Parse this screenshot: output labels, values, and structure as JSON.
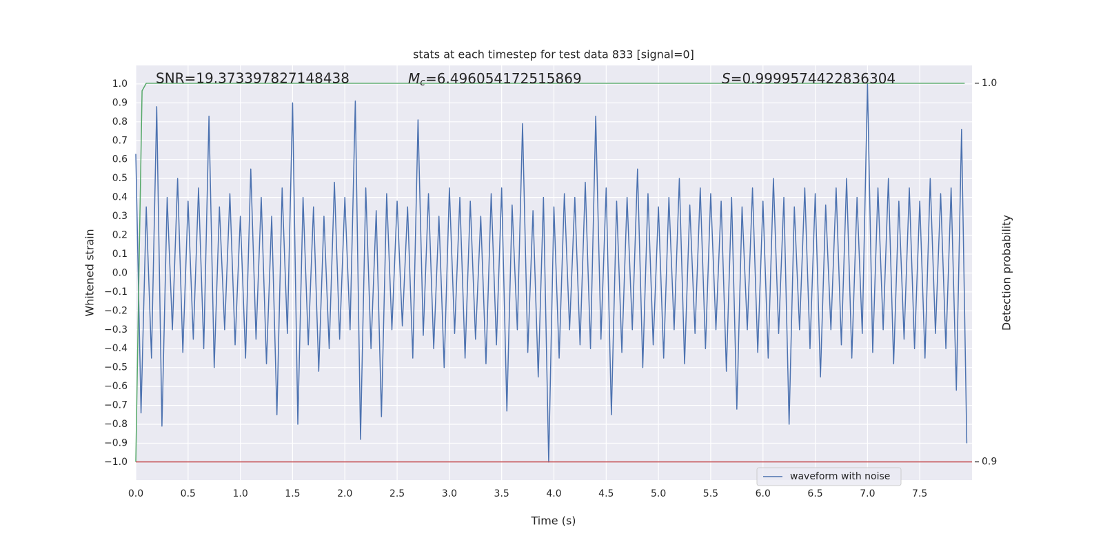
{
  "chart_data": {
    "type": "line",
    "title": "stats at each timestep for test data 833 [signal=0]",
    "xlabel": "Time (s)",
    "ylabel": "Whitened strain",
    "y2label": "Detection probability",
    "annotations": [
      {
        "text": "SNR=19.373397827148438"
      },
      {
        "symbol": "M",
        "subscript": "c",
        "text": "=6.496054172515869"
      },
      {
        "symbol": "S",
        "text": "=0.9999574422836304"
      }
    ],
    "xlim": [
      0,
      8
    ],
    "ylim": [
      -1.095,
      1.098
    ],
    "y2lim": [
      0.8952,
      1.0047
    ],
    "xticks": [
      {
        "value": 0,
        "label": "0.0"
      },
      {
        "value": 0.5,
        "label": "0.5"
      },
      {
        "value": 1,
        "label": "1.0"
      },
      {
        "value": 1.5,
        "label": "1.5"
      },
      {
        "value": 2,
        "label": "2.0"
      },
      {
        "value": 2.5,
        "label": "2.5"
      },
      {
        "value": 3,
        "label": "3.0"
      },
      {
        "value": 3.5,
        "label": "3.5"
      },
      {
        "value": 4,
        "label": "4.0"
      },
      {
        "value": 4.5,
        "label": "4.5"
      },
      {
        "value": 5,
        "label": "5.0"
      },
      {
        "value": 5.5,
        "label": "5.5"
      },
      {
        "value": 6,
        "label": "6.0"
      },
      {
        "value": 6.5,
        "label": "6.5"
      },
      {
        "value": 7,
        "label": "7.0"
      },
      {
        "value": 7.5,
        "label": "7.5"
      }
    ],
    "yticks": [
      {
        "value": -1,
        "label": "−1.0"
      },
      {
        "value": -0.9,
        "label": "−0.9"
      },
      {
        "value": -0.8,
        "label": "−0.8"
      },
      {
        "value": -0.7,
        "label": "−0.7"
      },
      {
        "value": -0.6,
        "label": "−0.6"
      },
      {
        "value": -0.5,
        "label": "−0.5"
      },
      {
        "value": -0.4,
        "label": "−0.4"
      },
      {
        "value": -0.3,
        "label": "−0.3"
      },
      {
        "value": -0.2,
        "label": "−0.2"
      },
      {
        "value": -0.1,
        "label": "−0.1"
      },
      {
        "value": 0,
        "label": "0.0"
      },
      {
        "value": 0.1,
        "label": "0.1"
      },
      {
        "value": 0.2,
        "label": "0.2"
      },
      {
        "value": 0.3,
        "label": "0.3"
      },
      {
        "value": 0.4,
        "label": "0.4"
      },
      {
        "value": 0.5,
        "label": "0.5"
      },
      {
        "value": 0.6,
        "label": "0.6"
      },
      {
        "value": 0.7,
        "label": "0.7"
      },
      {
        "value": 0.8,
        "label": "0.8"
      },
      {
        "value": 0.9,
        "label": "0.9"
      },
      {
        "value": 1,
        "label": "1.0"
      }
    ],
    "y2ticks": [
      0.9,
      {
        "value": 1,
        "label": "1.0"
      }
    ],
    "grid": true,
    "legend": "lower right",
    "series": [
      {
        "name": "waveform with noise",
        "color": "#4c72b0",
        "x": [
          0,
          0.05,
          0.1,
          0.15,
          0.2,
          0.25,
          0.3,
          0.35,
          0.4,
          0.45,
          0.5,
          0.55,
          0.6,
          0.65,
          0.7,
          0.75,
          0.8,
          0.85,
          0.9,
          0.95,
          1,
          1.05,
          1.1,
          1.15,
          1.2,
          1.25,
          1.3,
          1.35,
          1.4,
          1.45,
          1.5,
          1.55,
          1.6,
          1.65,
          1.7,
          1.75,
          1.8,
          1.85,
          1.9,
          1.95,
          2,
          2.05,
          2.1,
          2.15,
          2.2,
          2.25,
          2.3,
          2.35,
          2.4,
          2.45,
          2.5,
          2.55,
          2.6,
          2.65,
          2.7,
          2.75,
          2.8,
          2.85,
          2.9,
          2.95,
          3,
          3.05,
          3.1,
          3.15,
          3.2,
          3.25,
          3.3,
          3.35,
          3.4,
          3.45,
          3.5,
          3.55,
          3.6,
          3.65,
          3.7,
          3.75,
          3.8,
          3.85,
          3.9,
          3.95,
          4,
          4.05,
          4.1,
          4.15,
          4.2,
          4.25,
          4.3,
          4.35,
          4.4,
          4.45,
          4.5,
          4.55,
          4.6,
          4.65,
          4.7,
          4.75,
          4.8,
          4.85,
          4.9,
          4.95,
          5,
          5.05,
          5.1,
          5.15,
          5.2,
          5.25,
          5.3,
          5.35,
          5.4,
          5.45,
          5.5,
          5.55,
          5.6,
          5.65,
          5.7,
          5.75,
          5.8,
          5.85,
          5.9,
          5.95,
          6,
          6.05,
          6.1,
          6.15,
          6.2,
          6.25,
          6.3,
          6.35,
          6.4,
          6.45,
          6.5,
          6.55,
          6.6,
          6.65,
          6.7,
          6.75,
          6.8,
          6.85,
          6.9,
          6.95,
          7,
          7.05,
          7.1,
          7.15,
          7.2,
          7.25,
          7.3,
          7.35,
          7.4,
          7.45,
          7.5,
          7.55,
          7.6,
          7.65,
          7.7,
          7.75,
          7.8,
          7.85,
          7.9,
          7.95
        ],
        "values": [
          0.63,
          -0.74,
          0.35,
          -0.45,
          0.88,
          -0.81,
          0.4,
          -0.3,
          0.5,
          -0.42,
          0.38,
          -0.35,
          0.45,
          -0.4,
          0.83,
          -0.5,
          0.35,
          -0.3,
          0.42,
          -0.38,
          0.3,
          -0.45,
          0.55,
          -0.35,
          0.4,
          -0.48,
          0.3,
          -0.75,
          0.45,
          -0.32,
          0.9,
          -0.8,
          0.4,
          -0.38,
          0.35,
          -0.52,
          0.3,
          -0.4,
          0.48,
          -0.35,
          0.4,
          -0.3,
          0.91,
          -0.88,
          0.45,
          -0.4,
          0.33,
          -0.76,
          0.42,
          -0.3,
          0.38,
          -0.28,
          0.35,
          -0.45,
          0.81,
          -0.33,
          0.42,
          -0.4,
          0.3,
          -0.5,
          0.45,
          -0.32,
          0.4,
          -0.45,
          0.38,
          -0.35,
          0.3,
          -0.48,
          0.42,
          -0.38,
          0.45,
          -0.73,
          0.36,
          -0.3,
          0.79,
          -0.42,
          0.33,
          -0.55,
          0.4,
          -1.0,
          0.35,
          -0.45,
          0.42,
          -0.3,
          0.4,
          -0.38,
          0.48,
          -0.4,
          0.83,
          -0.35,
          0.45,
          -0.75,
          0.38,
          -0.42,
          0.4,
          -0.3,
          0.55,
          -0.5,
          0.42,
          -0.38,
          0.35,
          -0.45,
          0.4,
          -0.3,
          0.5,
          -0.48,
          0.36,
          -0.32,
          0.45,
          -0.4,
          0.42,
          -0.3,
          0.38,
          -0.52,
          0.4,
          -0.72,
          0.35,
          -0.3,
          0.45,
          -0.42,
          0.38,
          -0.45,
          0.5,
          -0.32,
          0.4,
          -0.8,
          0.35,
          -0.3,
          0.45,
          -0.4,
          0.42,
          -0.55,
          0.36,
          -0.3,
          0.45,
          -0.38,
          0.5,
          -0.45,
          0.4,
          -0.32,
          1.0,
          -0.42,
          0.45,
          -0.3,
          0.5,
          -0.48,
          0.38,
          -0.35,
          0.45,
          -0.4,
          0.38,
          -0.45,
          0.5,
          -0.32,
          0.42,
          -0.4,
          0.45,
          -0.62,
          0.76,
          -0.9
        ]
      },
      {
        "axis": "y2",
        "color": "#55a868",
        "x": [
          0,
          0.03,
          0.06,
          0.1,
          7.93
        ],
        "values": [
          0.9,
          0.95,
          0.998,
          1.0,
          1.0
        ]
      },
      {
        "axis": "y2",
        "color": "#c44e52",
        "x": [
          0,
          8
        ],
        "values": [
          0.9,
          0.9
        ]
      }
    ]
  }
}
